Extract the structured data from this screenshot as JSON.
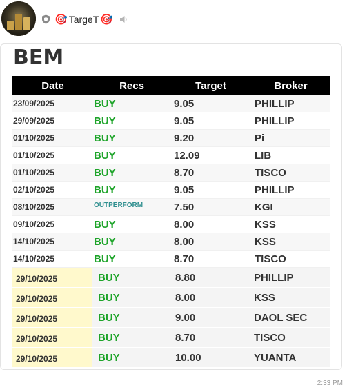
{
  "sender": {
    "name": "TargeT",
    "icons": [
      "shield-icon",
      "target-icon",
      "speaker-icon"
    ]
  },
  "message": {
    "title": "BEM",
    "timestamp": "2:33 PM"
  },
  "table": {
    "headers": [
      "Date",
      "Recs",
      "Target",
      "Broker"
    ],
    "rows": [
      {
        "date": "23/09/2025",
        "rec": "BUY",
        "target": "9.05",
        "broker": "PHILLIP"
      },
      {
        "date": "29/09/2025",
        "rec": "BUY",
        "target": "9.05",
        "broker": "PHILLIP"
      },
      {
        "date": "01/10/2025",
        "rec": "BUY",
        "target": "9.20",
        "broker": "Pi"
      },
      {
        "date": "01/10/2025",
        "rec": "BUY",
        "target": "12.09",
        "broker": "LIB"
      },
      {
        "date": "01/10/2025",
        "rec": "BUY",
        "target": "8.70",
        "broker": "TISCO"
      },
      {
        "date": "02/10/2025",
        "rec": "BUY",
        "target": "9.05",
        "broker": "PHILLIP"
      },
      {
        "date": "08/10/2025",
        "rec": "OUTPERFORM",
        "target": "7.50",
        "broker": "KGI"
      },
      {
        "date": "09/10/2025",
        "rec": "BUY",
        "target": "8.00",
        "broker": "KSS"
      },
      {
        "date": "14/10/2025",
        "rec": "BUY",
        "target": "8.00",
        "broker": "KSS"
      },
      {
        "date": "14/10/2025",
        "rec": "BUY",
        "target": "8.70",
        "broker": "TISCO"
      }
    ],
    "highlighted_rows": [
      {
        "date": "29/10/2025",
        "rec": "BUY",
        "target": "8.80",
        "broker": "PHILLIP"
      },
      {
        "date": "29/10/2025",
        "rec": "BUY",
        "target": "8.00",
        "broker": "KSS"
      },
      {
        "date": "29/10/2025",
        "rec": "BUY",
        "target": "9.00",
        "broker": "DAOL SEC"
      },
      {
        "date": "29/10/2025",
        "rec": "BUY",
        "target": "8.70",
        "broker": "TISCO"
      },
      {
        "date": "29/10/2025",
        "rec": "BUY",
        "target": "10.00",
        "broker": "YUANTA"
      }
    ]
  },
  "colors": {
    "buy": "#1ea42a",
    "outperform": "#2f8f8f",
    "header_bg": "#000000",
    "highlight_date_bg": "#fff9cc"
  }
}
